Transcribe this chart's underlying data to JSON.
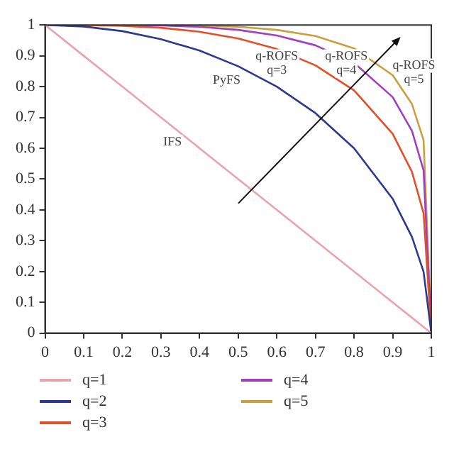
{
  "chart_data": {
    "type": "line",
    "x": [
      0,
      0.1,
      0.2,
      0.3,
      0.4,
      0.5,
      0.6,
      0.7,
      0.8,
      0.9,
      0.95,
      0.98,
      1
    ],
    "series": [
      {
        "name": "q=1",
        "color": "#e8a4ac",
        "values": [
          1,
          0.9,
          0.8,
          0.7,
          0.6,
          0.5,
          0.4,
          0.3,
          0.2,
          0.1,
          0.05,
          0.02,
          0
        ]
      },
      {
        "name": "q=2",
        "color": "#2e3a8c",
        "values": [
          1,
          0.995,
          0.98,
          0.954,
          0.917,
          0.866,
          0.8,
          0.714,
          0.6,
          0.436,
          0.312,
          0.199,
          0
        ]
      },
      {
        "name": "q=3",
        "color": "#e0502a",
        "values": [
          1,
          1,
          0.997,
          0.991,
          0.978,
          0.956,
          0.922,
          0.869,
          0.788,
          0.647,
          0.523,
          0.389,
          0
        ]
      },
      {
        "name": "q=4",
        "color": "#a040c0",
        "values": [
          null,
          null,
          1,
          0.998,
          0.994,
          0.984,
          0.966,
          0.934,
          0.877,
          0.766,
          0.656,
          0.528,
          0
        ]
      },
      {
        "name": "q=5",
        "color": "#c8a040",
        "values": [
          1,
          1,
          1,
          1,
          0.998,
          0.994,
          0.984,
          0.964,
          0.924,
          0.837,
          0.743,
          0.626,
          0
        ]
      }
    ],
    "xlim": [
      0,
      1
    ],
    "xticks": [
      0,
      0.1,
      0.2,
      0.3,
      0.4,
      0.5,
      0.6,
      0.7,
      0.8,
      0.9,
      1
    ],
    "ylim": [
      0,
      1
    ],
    "yticks": [
      0,
      0.1,
      0.2,
      0.3,
      0.4,
      0.5,
      0.6,
      0.7,
      0.8,
      0.9,
      1
    ],
    "annotations": [
      "IFS",
      "PyFS",
      "q-ROFS\nq=3",
      "q-ROFS\nq=4",
      "q-ROFS\nq=5"
    ],
    "grid": false,
    "legend": "bottom",
    "marker": "none",
    "line_style": "solid"
  }
}
